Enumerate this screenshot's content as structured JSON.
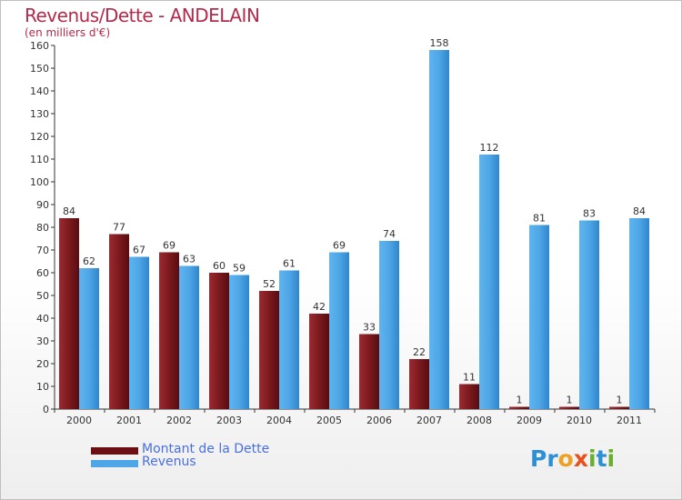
{
  "title": "Revenus/Dette - ANDELAIN",
  "subtitle": "(en milliers d'€)",
  "colors": {
    "title": "#b5294b",
    "dette": "#7a1a1e",
    "revenus": "#4ea6e6",
    "legend_text": "#4a6fe0"
  },
  "legend": [
    {
      "label": "Montant de la Dette",
      "color": "#6b0f14"
    },
    {
      "label": "Revenus",
      "color": "#4ea6e6"
    }
  ],
  "logo": {
    "text": "Proxiti"
  },
  "chart_data": {
    "type": "bar",
    "title": "Revenus/Dette - ANDELAIN",
    "subtitle": "(en milliers d'€)",
    "categories": [
      "2000",
      "2001",
      "2002",
      "2003",
      "2004",
      "2005",
      "2006",
      "2007",
      "2008",
      "2009",
      "2010",
      "2011"
    ],
    "series": [
      {
        "name": "Montant de la Dette",
        "values": [
          84,
          77,
          69,
          60,
          52,
          42,
          33,
          22,
          11,
          1,
          1,
          1
        ]
      },
      {
        "name": "Revenus",
        "values": [
          62,
          67,
          63,
          59,
          61,
          69,
          74,
          158,
          112,
          81,
          83,
          84
        ]
      }
    ],
    "ylim": [
      0,
      160
    ],
    "yticks": [
      0,
      10,
      20,
      30,
      40,
      50,
      60,
      70,
      80,
      90,
      100,
      110,
      120,
      130,
      140,
      150,
      160
    ],
    "grid": false,
    "legend_position": "bottom-left"
  }
}
